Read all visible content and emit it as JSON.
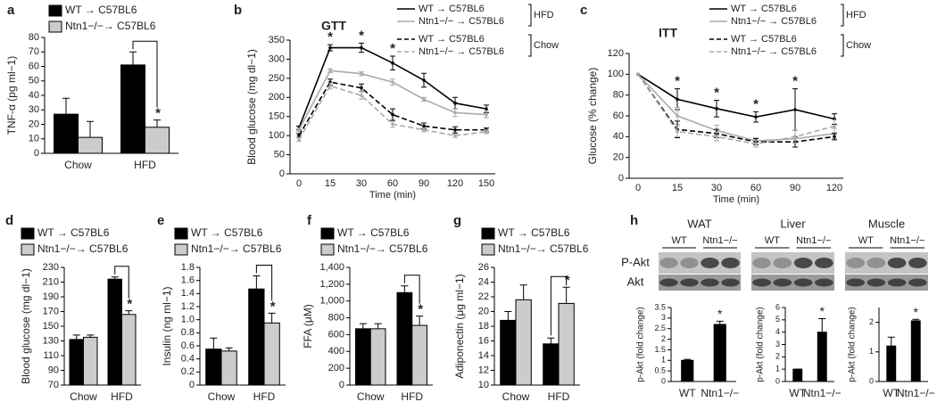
{
  "chart_data": [
    {
      "panel": "a",
      "type": "bar",
      "ylabel": "TNF-α (pg ml−1)",
      "categories": [
        "Chow",
        "HFD"
      ],
      "series": [
        {
          "name": "WT → C57BL6",
          "color": "#000000",
          "values": [
            27,
            61
          ],
          "errors": [
            11,
            9
          ]
        },
        {
          "name": "Ntn1−/−→ C57BL6",
          "color": "#cccccc",
          "values": [
            11,
            18
          ],
          "errors": [
            11,
            5
          ]
        }
      ],
      "ylim": [
        0,
        80
      ],
      "yticks": [
        0,
        10,
        20,
        30,
        40,
        50,
        60,
        70,
        80
      ],
      "annotations": [
        {
          "text": "*",
          "x": "HFD"
        }
      ]
    },
    {
      "panel": "b",
      "type": "line",
      "title": "GTT",
      "ylabel": "Blood glucose (mg dl−1)",
      "xlabel": "Time (min)",
      "categories": [
        "0",
        "15",
        "30",
        "60",
        "90",
        "120",
        "150"
      ],
      "series": [
        {
          "name": "WT → C57BL6",
          "color": "#000000",
          "dash": false,
          "values": [
            120,
            330,
            330,
            290,
            245,
            185,
            170
          ],
          "errors": [
            5,
            8,
            12,
            18,
            18,
            15,
            10
          ]
        },
        {
          "name": "Ntn1−/− → C57BL6",
          "color": "#aaaaaa",
          "dash": false,
          "values": [
            115,
            270,
            262,
            240,
            195,
            160,
            155
          ],
          "errors": [
            5,
            5,
            5,
            8,
            5,
            10,
            8
          ]
        },
        {
          "name": "WT → C57BL6",
          "color": "#000000",
          "dash": true,
          "values": [
            100,
            240,
            225,
            155,
            125,
            115,
            115
          ],
          "errors": [
            5,
            8,
            10,
            15,
            8,
            8,
            5
          ]
        },
        {
          "name": "Ntn1−/− → C57BL6",
          "color": "#aaaaaa",
          "dash": true,
          "values": [
            90,
            230,
            205,
            130,
            115,
            100,
            110
          ],
          "errors": [
            5,
            8,
            10,
            8,
            5,
            5,
            5
          ]
        }
      ],
      "legend_groups": [
        "HFD",
        "Chow"
      ],
      "ylim": [
        0,
        350
      ],
      "yticks": [
        0,
        50,
        100,
        150,
        200,
        250,
        300,
        350
      ],
      "annotations": [
        {
          "text": "*",
          "x": "15"
        },
        {
          "text": "*",
          "x": "30"
        },
        {
          "text": "*",
          "x": "60"
        }
      ]
    },
    {
      "panel": "c",
      "type": "line",
      "title": "ITT",
      "ylabel": "Glucose (% change)",
      "xlabel": "Time (min)",
      "categories": [
        "0",
        "15",
        "30",
        "60",
        "90",
        "120"
      ],
      "series": [
        {
          "name": "WT → C57BL6",
          "color": "#000000",
          "dash": false,
          "values": [
            100,
            76,
            67,
            59,
            66,
            57
          ],
          "errors": [
            0,
            10,
            8,
            5,
            20,
            5
          ]
        },
        {
          "name": "Ntn1−/− → C57BL6",
          "color": "#aaaaaa",
          "dash": false,
          "values": [
            100,
            60,
            46,
            36,
            38,
            43
          ],
          "errors": [
            0,
            8,
            5,
            3,
            8,
            5
          ]
        },
        {
          "name": "WT → C57BL6",
          "color": "#000000",
          "dash": true,
          "values": [
            100,
            47,
            43,
            35,
            35,
            40
          ],
          "errors": [
            0,
            8,
            4,
            3,
            5,
            3
          ]
        },
        {
          "name": "Ntn1−/− → C57BL6",
          "color": "#aaaaaa",
          "dash": true,
          "values": [
            100,
            45,
            40,
            33,
            40,
            50
          ],
          "errors": [
            0,
            5,
            4,
            3,
            6,
            6
          ]
        }
      ],
      "legend_groups": [
        "HFD",
        "Chow"
      ],
      "ylim": [
        0,
        120
      ],
      "yticks": [
        0,
        20,
        40,
        60,
        80,
        100,
        120
      ],
      "annotations": [
        {
          "text": "*",
          "x": "15"
        },
        {
          "text": "*",
          "x": "30"
        },
        {
          "text": "*",
          "x": "60"
        },
        {
          "text": "*",
          "x": "90"
        }
      ]
    },
    {
      "panel": "d",
      "type": "bar",
      "ylabel": "Blood glucose (mg dl−1)",
      "categories": [
        "Chow",
        "HFD"
      ],
      "series": [
        {
          "name": "WT → C57BL6",
          "color": "#000000",
          "values": [
            132,
            214
          ],
          "errors": [
            6,
            3
          ]
        },
        {
          "name": "Ntn1−/−→ C57BL6",
          "color": "#cccccc",
          "values": [
            135,
            166
          ],
          "errors": [
            3,
            5
          ]
        }
      ],
      "ylim": [
        70,
        230
      ],
      "yticks": [
        70,
        90,
        110,
        130,
        150,
        170,
        190,
        210,
        230
      ],
      "annotations": [
        {
          "text": "*",
          "x": "HFD"
        }
      ]
    },
    {
      "panel": "e",
      "type": "bar",
      "ylabel": "Insulin (ng ml−1)",
      "categories": [
        "Chow",
        "HFD"
      ],
      "series": [
        {
          "name": "WT → C57BL6",
          "color": "#000000",
          "values": [
            0.55,
            1.47
          ],
          "errors": [
            0.17,
            0.2
          ]
        },
        {
          "name": "Ntn1−/−→ C57BL6",
          "color": "#cccccc",
          "values": [
            0.52,
            0.95
          ],
          "errors": [
            0.05,
            0.15
          ]
        }
      ],
      "ylim": [
        0,
        1.8
      ],
      "yticks": [
        0,
        0.2,
        0.4,
        0.6,
        0.8,
        {
          "value": 1,
          "label": "1.0"
        },
        1.2,
        1.4,
        1.6,
        1.8
      ],
      "annotations": [
        {
          "text": "*",
          "x": "HFD"
        }
      ]
    },
    {
      "panel": "f",
      "type": "bar",
      "ylabel": "FFA (μM)",
      "categories": [
        "Chow",
        "HFD"
      ],
      "series": [
        {
          "name": "WT → C57BL6",
          "color": "#000000",
          "values": [
            670,
            1100
          ],
          "errors": [
            60,
            80
          ]
        },
        {
          "name": "Ntn1−/−→ C57BL6",
          "color": "#cccccc",
          "values": [
            670,
            710
          ],
          "errors": [
            60,
            110
          ]
        }
      ],
      "ylim": [
        0,
        1400
      ],
      "yticks": [
        0,
        200,
        400,
        600,
        800,
        {
          "value": 1000,
          "label": "1,000"
        },
        {
          "value": 1200,
          "label": "1,200"
        },
        {
          "value": 1400,
          "label": "1,400"
        }
      ],
      "annotations": [
        {
          "text": "*",
          "x": "HFD"
        }
      ]
    },
    {
      "panel": "g",
      "type": "bar",
      "ylabel": "Adiponectin (μg ml−1)",
      "categories": [
        "Chow",
        "HFD"
      ],
      "series": [
        {
          "name": "WT → C57BL6",
          "color": "#000000",
          "values": [
            18.8,
            15.6
          ],
          "errors": [
            1.2,
            0.8
          ]
        },
        {
          "name": "Ntn1−/−→ C57BL6",
          "color": "#cccccc",
          "values": [
            21.6,
            21.1
          ],
          "errors": [
            2,
            2.2
          ]
        }
      ],
      "ylim": [
        10,
        26
      ],
      "yticks": [
        10,
        12,
        14,
        16,
        18,
        20,
        22,
        24,
        26
      ],
      "annotations": [
        {
          "text": "*",
          "x": "HFD"
        }
      ]
    },
    {
      "panel": "h",
      "type": "bar",
      "title": "WAT",
      "blot_labels": [
        "P-Akt",
        "Akt"
      ],
      "ylabel": "p-Akt (fold change)",
      "categories": [
        "WT",
        "Ntn1−/−"
      ],
      "series": [
        {
          "color": "#000000",
          "values": [
            1.0,
            2.7
          ],
          "errors": [
            0.05,
            0.15
          ]
        }
      ],
      "ylim": [
        0,
        3.5
      ],
      "yticks": [
        0,
        0.5,
        1,
        1.5,
        2,
        2.5,
        3,
        3.5
      ],
      "annotations": [
        {
          "text": "*",
          "x": "Ntn1−/−"
        }
      ]
    },
    {
      "type": "bar",
      "title": "Liver",
      "ylabel": "p-Akt (fold change)",
      "categories": [
        "WT",
        "Ntn1−/−"
      ],
      "series": [
        {
          "color": "#000000",
          "values": [
            1.0,
            4.0
          ],
          "errors": [
            0,
            1.1
          ]
        }
      ],
      "ylim": [
        0,
        6
      ],
      "yticks": [
        0,
        1,
        2,
        3,
        4,
        5,
        6
      ],
      "annotations": [
        {
          "text": "*",
          "x": "Ntn1−/−"
        }
      ]
    },
    {
      "type": "bar",
      "title": "Muscle",
      "ylabel": "p-Akt (fold change)",
      "categories": [
        "WT",
        "Ntn1−/−"
      ],
      "series": [
        {
          "color": "#000000",
          "values": [
            1.2,
            2.05
          ],
          "errors": [
            0.3,
            0.05
          ]
        }
      ],
      "ylim": [
        0,
        2.5
      ],
      "yticks": [
        0,
        1,
        2
      ],
      "annotations": [
        {
          "text": "*",
          "x": "Ntn1−/−"
        }
      ]
    }
  ]
}
